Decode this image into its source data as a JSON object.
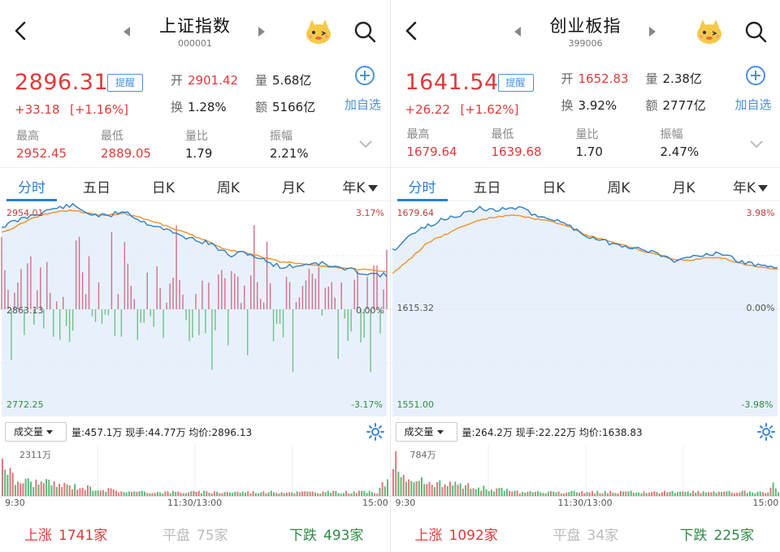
{
  "panels": [
    {
      "title": "上证指数",
      "code": "000001",
      "price": "2896.31",
      "remind_label": "提醒",
      "change": "+33.18",
      "change_pct": "[+1.16%]",
      "open_label": "开",
      "open": "2901.42",
      "volume_label": "量",
      "volume": "5.68亿",
      "turnover_label": "换",
      "turnover": "1.28%",
      "amount_label": "额",
      "amount": "5166亿",
      "add_label": "加自选",
      "high_label": "最高",
      "high": "2952.45",
      "low_label": "最低",
      "low": "2889.05",
      "vol_ratio_label": "量比",
      "vol_ratio": "1.79",
      "amplitude_label": "振幅",
      "amplitude": "2.21%",
      "tabs": [
        "分时",
        "五日",
        "日K",
        "周K",
        "月K",
        "年K"
      ],
      "axis": {
        "top": "2954.01",
        "mid": "2863.13",
        "bottom": "2772.25",
        "top_pct": "3.17%",
        "mid_pct": "0.00%",
        "bottom_pct": "-3.17%"
      },
      "vol_select": "成交量",
      "vol_info": "量:457.1万  现手:44.77万  均价:2896.13",
      "vol_max": "2311万",
      "time_labels": [
        "9:30",
        "11:30/13:00",
        "15:00"
      ],
      "up_label": "上涨",
      "up_count": "1741家",
      "flat_label": "平盘",
      "flat_count": "75家",
      "down_label": "下跌",
      "down_count": "493家"
    },
    {
      "title": "创业板指",
      "code": "399006",
      "price": "1641.54",
      "remind_label": "提醒",
      "change": "+26.22",
      "change_pct": "[+1.62%]",
      "open_label": "开",
      "open": "1652.83",
      "volume_label": "量",
      "volume": "2.38亿",
      "turnover_label": "换",
      "turnover": "3.92%",
      "amount_label": "额",
      "amount": "2777亿",
      "add_label": "加自选",
      "high_label": "最高",
      "high": "1679.64",
      "low_label": "最低",
      "low": "1639.68",
      "vol_ratio_label": "量比",
      "vol_ratio": "1.70",
      "amplitude_label": "振幅",
      "amplitude": "2.47%",
      "tabs": [
        "分时",
        "五日",
        "日K",
        "周K",
        "月K",
        "年K"
      ],
      "axis": {
        "top": "1679.64",
        "mid": "1615.32",
        "bottom": "1551.00",
        "top_pct": "3.98%",
        "mid_pct": "0.00%",
        "bottom_pct": "-3.98%"
      },
      "vol_select": "成交量",
      "vol_info": "量:264.2万  现手:22.22万  均价:1638.83",
      "vol_max": "784万",
      "time_labels": [
        "9:30",
        "11:30/13:00",
        "15:00"
      ],
      "up_label": "上涨",
      "up_count": "1092家",
      "flat_label": "平盘",
      "flat_count": "34家",
      "down_label": "下跌",
      "down_count": "225家"
    }
  ],
  "colors": {
    "up": "#e03a3a",
    "down": "#2d8a45",
    "accent": "#2a7fd4",
    "price_line": "#2f7fc6",
    "avg_line": "#f0902c",
    "fill": "#e6f0fb"
  },
  "icons": [
    "back-arrow-icon",
    "prev-arrow-icon",
    "next-arrow-icon",
    "mascot-icon",
    "search-icon",
    "add-circle-icon",
    "expand-chevron-icon",
    "gear-icon"
  ]
}
